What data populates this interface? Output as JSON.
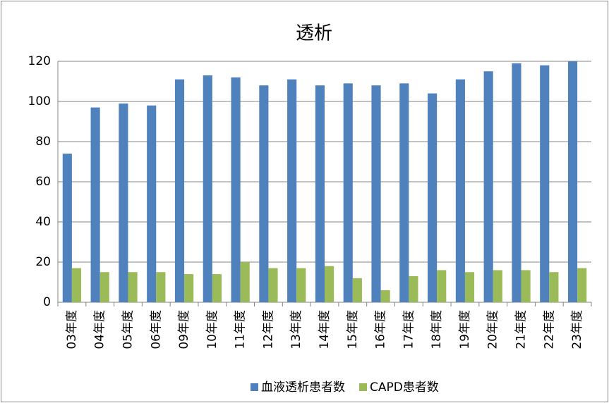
{
  "chart_data": {
    "type": "bar",
    "title": "透析",
    "categories": [
      "03年度",
      "04年度",
      "05年度",
      "06年度",
      "09年度",
      "10年度",
      "11年度",
      "12年度",
      "13年度",
      "14年度",
      "15年度",
      "16年度",
      "17年度",
      "18年度",
      "19年度",
      "20年度",
      "21年度",
      "22年度",
      "23年度"
    ],
    "series": [
      {
        "name": "血液透析患者数",
        "color": "#4f81bd",
        "values": [
          74,
          97,
          99,
          98,
          111,
          113,
          112,
          108,
          111,
          108,
          109,
          108,
          109,
          104,
          111,
          115,
          119,
          118,
          120
        ]
      },
      {
        "name": "CAPD患者数",
        "color": "#9bbb59",
        "values": [
          17,
          15,
          15,
          15,
          14,
          14,
          20,
          17,
          17,
          18,
          12,
          6,
          13,
          16,
          15,
          16,
          16,
          15,
          17
        ]
      }
    ],
    "ylim": [
      0,
      120
    ],
    "yticks": [
      0,
      20,
      40,
      60,
      80,
      100,
      120
    ],
    "grid": true
  }
}
